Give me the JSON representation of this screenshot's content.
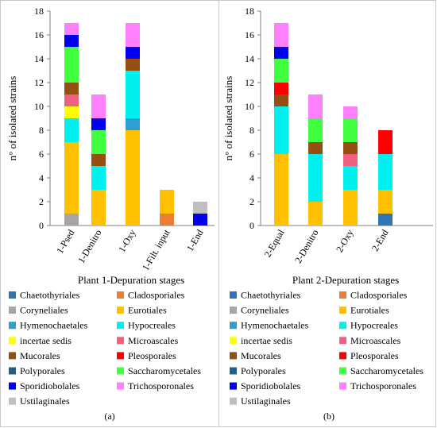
{
  "chart_data": [
    {
      "type": "bar",
      "stacked": true,
      "panel_label": "(a)",
      "xlabel": "Plant 1-Depuration stages",
      "ylabel": "n° of isolated strains",
      "ylim": [
        0,
        18
      ],
      "yticks": [
        0,
        2,
        4,
        6,
        8,
        10,
        12,
        14,
        16,
        18
      ],
      "categories": [
        "1-Psed",
        "1-Denitro",
        "1-Oxy",
        "1-Filt. input",
        "1-End"
      ],
      "legend_columns": 2,
      "legend": [
        {
          "name": "Chaetothyriales",
          "color": "#2e75b6"
        },
        {
          "name": "Cladosporiales",
          "color": "#ed7d31"
        },
        {
          "name": "Coryneliales",
          "color": "#a5a5a5"
        },
        {
          "name": "Eurotiales",
          "color": "#ffc000"
        },
        {
          "name": "Hymenochaetales",
          "color": "#2e9fd6"
        },
        {
          "name": "Hypocreales",
          "color": "#00f0f0"
        },
        {
          "name": "incertae sedis",
          "color": "#ffff00"
        },
        {
          "name": "Microascales",
          "color": "#f06080"
        },
        {
          "name": "Mucorales",
          "color": "#954f13"
        },
        {
          "name": "Pleosporales",
          "color": "#ff0000"
        },
        {
          "name": "Polyporales",
          "color": "#1f5f8b"
        },
        {
          "name": "Saccharomycetales",
          "color": "#40ff40"
        },
        {
          "name": "Sporidiobolales",
          "color": "#0000ee"
        },
        {
          "name": "Trichosporonales",
          "color": "#ff80ff"
        },
        {
          "name": "Ustilaginales",
          "color": "#bfbfbf"
        }
      ],
      "series": [
        {
          "name": "Chaetothyriales",
          "values": [
            0,
            0,
            0,
            0,
            0
          ]
        },
        {
          "name": "Cladosporiales",
          "values": [
            0,
            0,
            0,
            1,
            0
          ]
        },
        {
          "name": "Coryneliales",
          "values": [
            1,
            0,
            0,
            0,
            0
          ]
        },
        {
          "name": "Eurotiales",
          "values": [
            6,
            3,
            8,
            2,
            0
          ]
        },
        {
          "name": "Hymenochaetales",
          "values": [
            0,
            0,
            1,
            0,
            0
          ]
        },
        {
          "name": "Hypocreales",
          "values": [
            2,
            2,
            4,
            0,
            0
          ]
        },
        {
          "name": "incertae sedis",
          "values": [
            1,
            0,
            0,
            0,
            0
          ]
        },
        {
          "name": "Microascales",
          "values": [
            1,
            0,
            0,
            0,
            0
          ]
        },
        {
          "name": "Mucorales",
          "values": [
            1,
            1,
            1,
            0,
            0
          ]
        },
        {
          "name": "Pleosporales",
          "values": [
            0,
            0,
            0,
            0,
            0
          ]
        },
        {
          "name": "Polyporales",
          "values": [
            0,
            0,
            0,
            0,
            0
          ]
        },
        {
          "name": "Saccharomycetales",
          "values": [
            3,
            2,
            0,
            0,
            0
          ]
        },
        {
          "name": "Sporidiobolales",
          "values": [
            1,
            1,
            1,
            0,
            1
          ]
        },
        {
          "name": "Trichosporonales",
          "values": [
            1,
            2,
            2,
            0,
            0
          ]
        },
        {
          "name": "Ustilaginales",
          "values": [
            0,
            0,
            0,
            0,
            1
          ]
        }
      ]
    },
    {
      "type": "bar",
      "stacked": true,
      "panel_label": "(b)",
      "xlabel": "Plant 2-Depuration stages",
      "ylabel": "n° of isolated strains",
      "ylim": [
        0,
        18
      ],
      "yticks": [
        0,
        2,
        4,
        6,
        8,
        10,
        12,
        14,
        16,
        18
      ],
      "categories": [
        "2-Equal",
        "2-Denitro",
        "2-Oxy",
        "2-End"
      ],
      "legend_columns": 2,
      "legend": [
        {
          "name": "Chaetothyriales",
          "color": "#2e75b6"
        },
        {
          "name": "Cladosporiales",
          "color": "#ed7d31"
        },
        {
          "name": "Coryneliales",
          "color": "#a5a5a5"
        },
        {
          "name": "Eurotiales",
          "color": "#ffc000"
        },
        {
          "name": "Hymenochaetales",
          "color": "#2e9fd6"
        },
        {
          "name": "Hypocreales",
          "color": "#00f0f0"
        },
        {
          "name": "incertae sedis",
          "color": "#ffff00"
        },
        {
          "name": "Microascales",
          "color": "#f06080"
        },
        {
          "name": "Mucorales",
          "color": "#954f13"
        },
        {
          "name": "Pleosporales",
          "color": "#ff0000"
        },
        {
          "name": "Polyporales",
          "color": "#1f5f8b"
        },
        {
          "name": "Saccharomycetales",
          "color": "#40ff40"
        },
        {
          "name": "Sporidiobolales",
          "color": "#0000ee"
        },
        {
          "name": "Trichosporonales",
          "color": "#ff80ff"
        },
        {
          "name": "Ustilaginales",
          "color": "#bfbfbf"
        }
      ],
      "series": [
        {
          "name": "Chaetothyriales",
          "values": [
            0,
            0,
            0,
            1
          ]
        },
        {
          "name": "Cladosporiales",
          "values": [
            0,
            0,
            0,
            0
          ]
        },
        {
          "name": "Coryneliales",
          "values": [
            0,
            0,
            0,
            0
          ]
        },
        {
          "name": "Eurotiales",
          "values": [
            6,
            2,
            3,
            2
          ]
        },
        {
          "name": "Hymenochaetales",
          "values": [
            0,
            0,
            0,
            0
          ]
        },
        {
          "name": "Hypocreales",
          "values": [
            4,
            4,
            2,
            3
          ]
        },
        {
          "name": "incertae sedis",
          "values": [
            0,
            0,
            0,
            0
          ]
        },
        {
          "name": "Microascales",
          "values": [
            0,
            0,
            1,
            0
          ]
        },
        {
          "name": "Mucorales",
          "values": [
            1,
            1,
            1,
            0
          ]
        },
        {
          "name": "Pleosporales",
          "values": [
            1,
            0,
            0,
            2
          ]
        },
        {
          "name": "Polyporales",
          "values": [
            0,
            0,
            0,
            0
          ]
        },
        {
          "name": "Saccharomycetales",
          "values": [
            2,
            2,
            2,
            0
          ]
        },
        {
          "name": "Sporidiobolales",
          "values": [
            1,
            0,
            0,
            0
          ]
        },
        {
          "name": "Trichosporonales",
          "values": [
            2,
            2,
            1,
            0
          ]
        },
        {
          "name": "Ustilaginales",
          "values": [
            0,
            0,
            0,
            0
          ]
        }
      ]
    }
  ]
}
